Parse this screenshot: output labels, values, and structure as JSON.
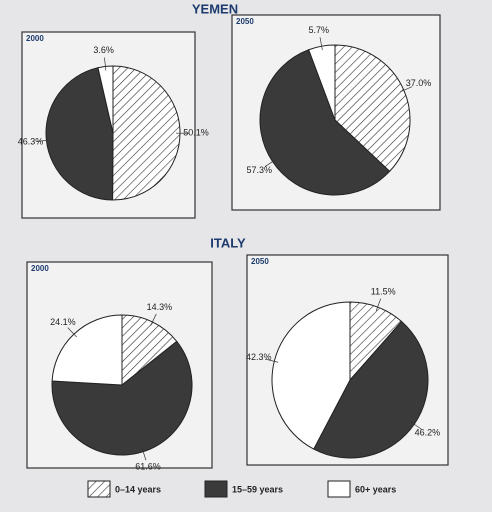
{
  "headings": [
    "YEMEN",
    "ITALY"
  ],
  "legend": {
    "categories": [
      "0–14 years",
      "15–59 years",
      "60+ years"
    ],
    "colors": [
      "#ffffff",
      "#3a3a3a",
      "#ffffff"
    ],
    "hatched": [
      true,
      false,
      false
    ]
  },
  "chart_data": [
    {
      "type": "pie",
      "title": "2000",
      "values": [
        50.1,
        46.3,
        3.6
      ],
      "value_labels": [
        "50.1%",
        "46.3%",
        "3.6%"
      ]
    },
    {
      "type": "pie",
      "title": "2050",
      "values": [
        37.0,
        57.3,
        5.7
      ],
      "value_labels": [
        "37.0%",
        "57.3%",
        "5.7%"
      ]
    },
    {
      "type": "pie",
      "title": "2000",
      "values": [
        14.3,
        61.6,
        24.1
      ],
      "value_labels": [
        "14.3%",
        "61.6%",
        "24.1%"
      ]
    },
    {
      "type": "pie",
      "title": "2050",
      "values": [
        11.5,
        46.2,
        42.3
      ],
      "value_labels": [
        "11.5%",
        "46.2%",
        "42.3%"
      ]
    }
  ]
}
